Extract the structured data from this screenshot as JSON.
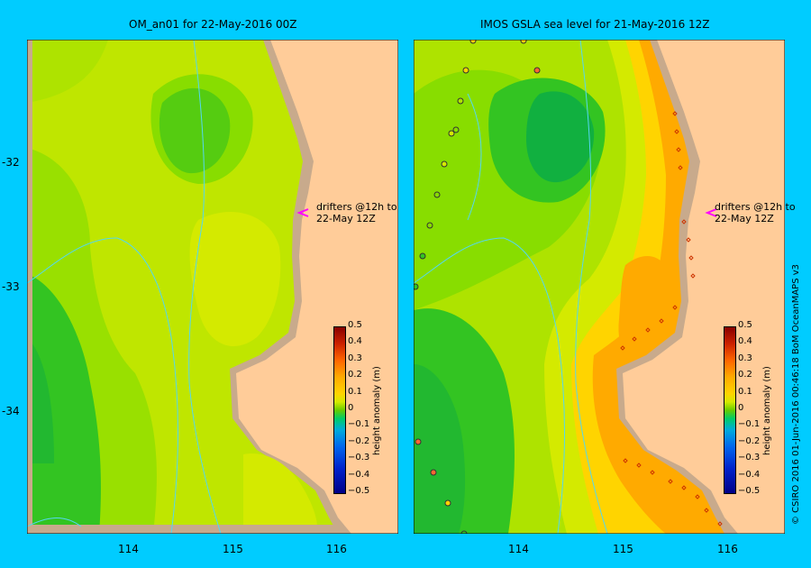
{
  "panels": [
    {
      "title": "OM_an01  for 22-May-2016 00Z"
    },
    {
      "title": "IMOS  GSLA sea level   for 21-May-2016 12Z"
    }
  ],
  "lat_ticks": [
    "-32",
    "-33",
    "-34"
  ],
  "lon_ticks": [
    "114",
    "115",
    "116"
  ],
  "drifter_note": {
    "line1": "drifters @12h to",
    "line2": "22-May 12Z"
  },
  "colorbar": {
    "title": "height anomaly (m)",
    "ticks": [
      "0.5",
      "0.4",
      "0.3",
      "0.2",
      "0.1",
      "0",
      "−0.1",
      "−0.2",
      "−0.3",
      "−0.4",
      "−0.5"
    ],
    "range": [
      -0.5,
      0.5
    ]
  },
  "credit": "© CSIRO 2016   01-Jun-2016 00:46:18 BoM OceanMAPS v3",
  "colors": {
    "background": "#00ccff",
    "land": "#ffcc99",
    "coast_shelf": "#c8aa8c",
    "isobath": "#55d8f0",
    "drifter_arrow": "#ff00ff"
  }
}
